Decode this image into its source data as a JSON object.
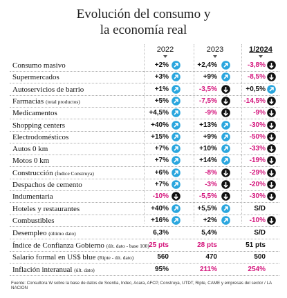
{
  "title": [
    "Evolución del consumo y",
    "la economía real"
  ],
  "columns": [
    "2022",
    "2023",
    "1/2024"
  ],
  "rows": [
    {
      "label": "Consumo masivo",
      "cells": [
        {
          "text": "+2%",
          "icon": "up"
        },
        {
          "text": "+2,4%",
          "icon": "up"
        },
        {
          "text": "-3,8%",
          "icon": "down",
          "color": "#d4147c"
        }
      ]
    },
    {
      "label": "Supermercados",
      "cells": [
        {
          "text": "+3%",
          "icon": "up"
        },
        {
          "text": "+9%",
          "icon": "up"
        },
        {
          "text": "-8,5%",
          "icon": "down",
          "color": "#d4147c"
        }
      ]
    },
    {
      "label": "Autoservicios de barrio",
      "cells": [
        {
          "text": "+1%",
          "icon": "up"
        },
        {
          "text": "-3,5%",
          "icon": "down",
          "color": "#d4147c"
        },
        {
          "text": "+0,5%",
          "icon": "up"
        }
      ]
    },
    {
      "label": "Farmacias",
      "note": "(total productos)",
      "cells": [
        {
          "text": "+5%",
          "icon": "up"
        },
        {
          "text": "-7,5%",
          "icon": "down",
          "color": "#d4147c"
        },
        {
          "text": "-14,5%",
          "icon": "down",
          "color": "#d4147c"
        }
      ]
    },
    {
      "label": "Medicamentos",
      "cells": [
        {
          "text": "+4,5%",
          "icon": "up"
        },
        {
          "text": "-9%",
          "icon": "down",
          "color": "#d4147c"
        },
        {
          "text": "-9%",
          "icon": "down",
          "color": "#d4147c"
        }
      ]
    },
    {
      "label": "Shopping centers",
      "cells": [
        {
          "text": "+40%",
          "icon": "up"
        },
        {
          "text": "+13%",
          "icon": "up"
        },
        {
          "text": "-30%",
          "icon": "down",
          "color": "#d4147c"
        }
      ]
    },
    {
      "label": "Electrodomésticos",
      "cells": [
        {
          "text": "+15%",
          "icon": "up"
        },
        {
          "text": "+9%",
          "icon": "up"
        },
        {
          "text": "-50%",
          "icon": "down",
          "color": "#d4147c"
        }
      ]
    },
    {
      "label": "Autos 0 km",
      "cells": [
        {
          "text": "+7%",
          "icon": "up"
        },
        {
          "text": "+10%",
          "icon": "up"
        },
        {
          "text": "-33%",
          "icon": "down",
          "color": "#d4147c"
        }
      ]
    },
    {
      "label": "Motos 0 km",
      "cells": [
        {
          "text": "+7%",
          "icon": "up"
        },
        {
          "text": "+14%",
          "icon": "up"
        },
        {
          "text": "-19%",
          "icon": "down",
          "color": "#d4147c"
        }
      ]
    },
    {
      "label": "Construcción",
      "note": "(Índice Construya)",
      "cells": [
        {
          "text": "+6%",
          "icon": "up"
        },
        {
          "text": "-8%",
          "icon": "down",
          "color": "#d4147c"
        },
        {
          "text": "-29%",
          "icon": "down",
          "color": "#d4147c"
        }
      ]
    },
    {
      "label": "Despachos de cemento",
      "cells": [
        {
          "text": "+7%",
          "icon": "up"
        },
        {
          "text": "-3%",
          "icon": "down",
          "color": "#d4147c"
        },
        {
          "text": "-20%",
          "icon": "down",
          "color": "#d4147c"
        }
      ]
    },
    {
      "label": "Indumentaria",
      "cells": [
        {
          "text": "-10%",
          "icon": "down",
          "color": "#d4147c"
        },
        {
          "text": "-5,5%",
          "icon": "down",
          "color": "#d4147c"
        },
        {
          "text": "-30%",
          "icon": "down",
          "color": "#d4147c"
        }
      ]
    },
    {
      "label": "Hoteles y restaurantes",
      "cells": [
        {
          "text": "+40%",
          "icon": "up"
        },
        {
          "text": "+5,5%",
          "icon": "up"
        },
        {
          "text": "S/D"
        }
      ]
    },
    {
      "label": "Combustibles",
      "cells": [
        {
          "text": "+16%",
          "icon": "up"
        },
        {
          "text": "+2%",
          "icon": "up"
        },
        {
          "text": "-10%",
          "icon": "down",
          "color": "#d4147c"
        }
      ]
    }
  ],
  "indicators": [
    {
      "label": "Desempleo",
      "note": "(último dato)",
      "cells": [
        {
          "text": "6,3%"
        },
        {
          "text": "5,4%"
        },
        {
          "text": "S/D"
        }
      ]
    },
    {
      "label": "Índice de Confianza Gobierno",
      "note": "(últ. dato - base 100)",
      "cells": [
        {
          "text": "25 pts",
          "color": "#d4147c"
        },
        {
          "text": "28 pts",
          "color": "#d4147c"
        },
        {
          "text": "51 pts"
        }
      ]
    },
    {
      "label": "Salario formal en US$ blue",
      "note": "(Ripte - últ. dato)",
      "cells": [
        {
          "text": "560"
        },
        {
          "text": "470"
        },
        {
          "text": "500"
        }
      ]
    },
    {
      "label": "Inflación interanual",
      "note": "(últ. dato)",
      "cells": [
        {
          "text": "95%"
        },
        {
          "text": "211%",
          "color": "#d4147c"
        },
        {
          "text": "254%",
          "color": "#d4147c"
        }
      ]
    }
  ],
  "source": "Fuente: Consultora W sobre la base de datos de Scentia, Indec, Acara, AFCP, Construya, UTDT, Ripte, CAME y empresas del sector / LA NACION"
}
